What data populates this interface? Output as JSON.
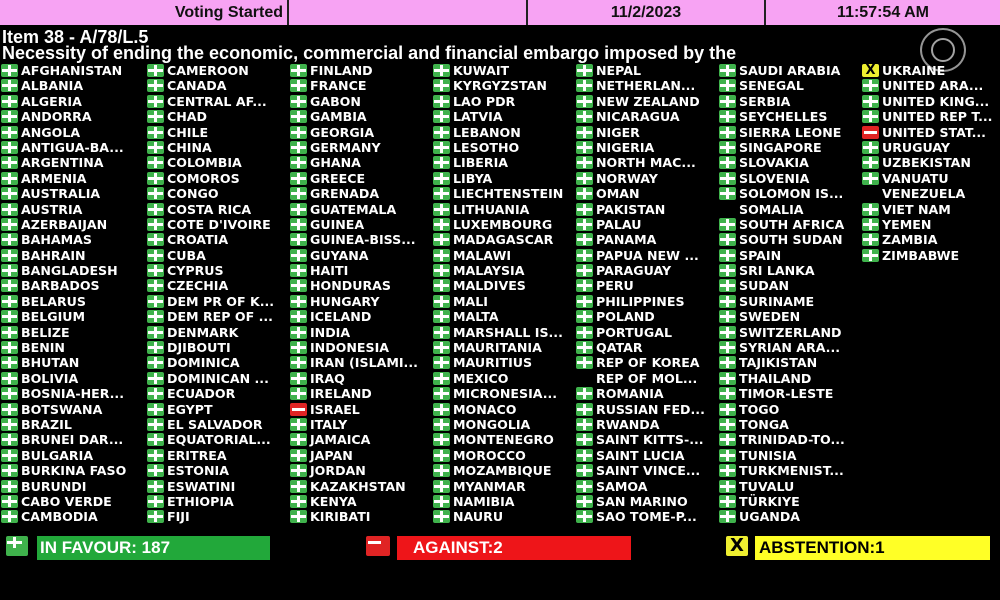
{
  "header": {
    "status": "Voting Started",
    "blank": "",
    "date": "11/2/2023",
    "time": "11:57:54 AM"
  },
  "item": "Item 38 - A/78/L.5",
  "description": "Necessity of ending the economic, commercial and financial embargo imposed by the",
  "vote_colors": {
    "yes": "#3fb24c",
    "no": "#e02424",
    "abstain": "#eeee30"
  },
  "columns": [
    [
      {
        "name": "AFGHANISTAN",
        "vote": "yes"
      },
      {
        "name": "ALBANIA",
        "vote": "yes"
      },
      {
        "name": "ALGERIA",
        "vote": "yes"
      },
      {
        "name": "ANDORRA",
        "vote": "yes"
      },
      {
        "name": "ANGOLA",
        "vote": "yes"
      },
      {
        "name": "ANTIGUA-BA...",
        "vote": "yes"
      },
      {
        "name": "ARGENTINA",
        "vote": "yes"
      },
      {
        "name": "ARMENIA",
        "vote": "yes"
      },
      {
        "name": "AUSTRALIA",
        "vote": "yes"
      },
      {
        "name": "AUSTRIA",
        "vote": "yes"
      },
      {
        "name": "AZERBAIJAN",
        "vote": "yes"
      },
      {
        "name": "BAHAMAS",
        "vote": "yes"
      },
      {
        "name": "BAHRAIN",
        "vote": "yes"
      },
      {
        "name": "BANGLADESH",
        "vote": "yes"
      },
      {
        "name": "BARBADOS",
        "vote": "yes"
      },
      {
        "name": "BELARUS",
        "vote": "yes"
      },
      {
        "name": "BELGIUM",
        "vote": "yes"
      },
      {
        "name": "BELIZE",
        "vote": "yes"
      },
      {
        "name": "BENIN",
        "vote": "yes"
      },
      {
        "name": "BHUTAN",
        "vote": "yes"
      },
      {
        "name": "BOLIVIA",
        "vote": "yes"
      },
      {
        "name": "BOSNIA-HER...",
        "vote": "yes"
      },
      {
        "name": "BOTSWANA",
        "vote": "yes"
      },
      {
        "name": "BRAZIL",
        "vote": "yes"
      },
      {
        "name": "BRUNEI DAR...",
        "vote": "yes"
      },
      {
        "name": "BULGARIA",
        "vote": "yes"
      },
      {
        "name": "BURKINA FASO",
        "vote": "yes"
      },
      {
        "name": "BURUNDI",
        "vote": "yes"
      },
      {
        "name": "CABO VERDE",
        "vote": "yes"
      },
      {
        "name": "CAMBODIA",
        "vote": "yes"
      }
    ],
    [
      {
        "name": "CAMEROON",
        "vote": "yes"
      },
      {
        "name": "CANADA",
        "vote": "yes"
      },
      {
        "name": "CENTRAL AF...",
        "vote": "yes"
      },
      {
        "name": "CHAD",
        "vote": "yes"
      },
      {
        "name": "CHILE",
        "vote": "yes"
      },
      {
        "name": "CHINA",
        "vote": "yes"
      },
      {
        "name": "COLOMBIA",
        "vote": "yes"
      },
      {
        "name": "COMOROS",
        "vote": "yes"
      },
      {
        "name": "CONGO",
        "vote": "yes"
      },
      {
        "name": "COSTA RICA",
        "vote": "yes"
      },
      {
        "name": "COTE D'IVOIRE",
        "vote": "yes"
      },
      {
        "name": "CROATIA",
        "vote": "yes"
      },
      {
        "name": "CUBA",
        "vote": "yes"
      },
      {
        "name": "CYPRUS",
        "vote": "yes"
      },
      {
        "name": "CZECHIA",
        "vote": "yes"
      },
      {
        "name": "DEM PR OF K...",
        "vote": "yes"
      },
      {
        "name": "DEM REP OF ...",
        "vote": "yes"
      },
      {
        "name": "DENMARK",
        "vote": "yes"
      },
      {
        "name": "DJIBOUTI",
        "vote": "yes"
      },
      {
        "name": "DOMINICA",
        "vote": "yes"
      },
      {
        "name": "DOMINICAN ...",
        "vote": "yes"
      },
      {
        "name": "ECUADOR",
        "vote": "yes"
      },
      {
        "name": "EGYPT",
        "vote": "yes"
      },
      {
        "name": "EL SALVADOR",
        "vote": "yes"
      },
      {
        "name": "EQUATORIAL...",
        "vote": "yes"
      },
      {
        "name": "ERITREA",
        "vote": "yes"
      },
      {
        "name": "ESTONIA",
        "vote": "yes"
      },
      {
        "name": "ESWATINI",
        "vote": "yes"
      },
      {
        "name": "ETHIOPIA",
        "vote": "yes"
      },
      {
        "name": "FIJI",
        "vote": "yes"
      }
    ],
    [
      {
        "name": "FINLAND",
        "vote": "yes"
      },
      {
        "name": "FRANCE",
        "vote": "yes"
      },
      {
        "name": "GABON",
        "vote": "yes"
      },
      {
        "name": "GAMBIA",
        "vote": "yes"
      },
      {
        "name": "GEORGIA",
        "vote": "yes"
      },
      {
        "name": "GERMANY",
        "vote": "yes"
      },
      {
        "name": "GHANA",
        "vote": "yes"
      },
      {
        "name": "GREECE",
        "vote": "yes"
      },
      {
        "name": "GRENADA",
        "vote": "yes"
      },
      {
        "name": "GUATEMALA",
        "vote": "yes"
      },
      {
        "name": "GUINEA",
        "vote": "yes"
      },
      {
        "name": "GUINEA-BISS...",
        "vote": "yes"
      },
      {
        "name": "GUYANA",
        "vote": "yes"
      },
      {
        "name": "HAITI",
        "vote": "yes"
      },
      {
        "name": "HONDURAS",
        "vote": "yes"
      },
      {
        "name": "HUNGARY",
        "vote": "yes"
      },
      {
        "name": "ICELAND",
        "vote": "yes"
      },
      {
        "name": "INDIA",
        "vote": "yes"
      },
      {
        "name": "INDONESIA",
        "vote": "yes"
      },
      {
        "name": "IRAN (ISLAMI...",
        "vote": "yes"
      },
      {
        "name": "IRAQ",
        "vote": "yes"
      },
      {
        "name": "IRELAND",
        "vote": "yes"
      },
      {
        "name": "ISRAEL",
        "vote": "no"
      },
      {
        "name": "ITALY",
        "vote": "yes"
      },
      {
        "name": "JAMAICA",
        "vote": "yes"
      },
      {
        "name": "JAPAN",
        "vote": "yes"
      },
      {
        "name": "JORDAN",
        "vote": "yes"
      },
      {
        "name": "KAZAKHSTAN",
        "vote": "yes"
      },
      {
        "name": "KENYA",
        "vote": "yes"
      },
      {
        "name": "KIRIBATI",
        "vote": "yes"
      }
    ],
    [
      {
        "name": "KUWAIT",
        "vote": "yes"
      },
      {
        "name": "KYRGYZSTAN",
        "vote": "yes"
      },
      {
        "name": "LAO PDR",
        "vote": "yes"
      },
      {
        "name": "LATVIA",
        "vote": "yes"
      },
      {
        "name": "LEBANON",
        "vote": "yes"
      },
      {
        "name": "LESOTHO",
        "vote": "yes"
      },
      {
        "name": "LIBERIA",
        "vote": "yes"
      },
      {
        "name": "LIBYA",
        "vote": "yes"
      },
      {
        "name": "LIECHTENSTEIN",
        "vote": "yes"
      },
      {
        "name": "LITHUANIA",
        "vote": "yes"
      },
      {
        "name": "LUXEMBOURG",
        "vote": "yes"
      },
      {
        "name": "MADAGASCAR",
        "vote": "yes"
      },
      {
        "name": "MALAWI",
        "vote": "yes"
      },
      {
        "name": "MALAYSIA",
        "vote": "yes"
      },
      {
        "name": "MALDIVES",
        "vote": "yes"
      },
      {
        "name": "MALI",
        "vote": "yes"
      },
      {
        "name": "MALTA",
        "vote": "yes"
      },
      {
        "name": "MARSHALL IS...",
        "vote": "yes"
      },
      {
        "name": "MAURITANIA",
        "vote": "yes"
      },
      {
        "name": "MAURITIUS",
        "vote": "yes"
      },
      {
        "name": "MEXICO",
        "vote": "yes"
      },
      {
        "name": "MICRONESIA...",
        "vote": "yes"
      },
      {
        "name": "MONACO",
        "vote": "yes"
      },
      {
        "name": "MONGOLIA",
        "vote": "yes"
      },
      {
        "name": "MONTENEGRO",
        "vote": "yes"
      },
      {
        "name": "MOROCCO",
        "vote": "yes"
      },
      {
        "name": "MOZAMBIQUE",
        "vote": "yes"
      },
      {
        "name": "MYANMAR",
        "vote": "yes"
      },
      {
        "name": "NAMIBIA",
        "vote": "yes"
      },
      {
        "name": "NAURU",
        "vote": "yes"
      }
    ],
    [
      {
        "name": "NEPAL",
        "vote": "yes"
      },
      {
        "name": "NETHERLAN...",
        "vote": "yes"
      },
      {
        "name": "NEW ZEALAND",
        "vote": "yes"
      },
      {
        "name": "NICARAGUA",
        "vote": "yes"
      },
      {
        "name": "NIGER",
        "vote": "yes"
      },
      {
        "name": "NIGERIA",
        "vote": "yes"
      },
      {
        "name": "NORTH MAC...",
        "vote": "yes"
      },
      {
        "name": "NORWAY",
        "vote": "yes"
      },
      {
        "name": "OMAN",
        "vote": "yes"
      },
      {
        "name": "PAKISTAN",
        "vote": "yes"
      },
      {
        "name": "PALAU",
        "vote": "yes"
      },
      {
        "name": "PANAMA",
        "vote": "yes"
      },
      {
        "name": "PAPUA NEW ...",
        "vote": "yes"
      },
      {
        "name": "PARAGUAY",
        "vote": "yes"
      },
      {
        "name": "PERU",
        "vote": "yes"
      },
      {
        "name": "PHILIPPINES",
        "vote": "yes"
      },
      {
        "name": "POLAND",
        "vote": "yes"
      },
      {
        "name": "PORTUGAL",
        "vote": "yes"
      },
      {
        "name": "QATAR",
        "vote": "yes"
      },
      {
        "name": "REP OF KOREA",
        "vote": "yes"
      },
      {
        "name": "REP OF MOL...",
        "vote": ""
      },
      {
        "name": "ROMANIA",
        "vote": "yes"
      },
      {
        "name": "RUSSIAN FED...",
        "vote": "yes"
      },
      {
        "name": "RWANDA",
        "vote": "yes"
      },
      {
        "name": "SAINT KITTS-...",
        "vote": "yes"
      },
      {
        "name": "SAINT LUCIA",
        "vote": "yes"
      },
      {
        "name": "SAINT VINCE...",
        "vote": "yes"
      },
      {
        "name": "SAMOA",
        "vote": "yes"
      },
      {
        "name": "SAN MARINO",
        "vote": "yes"
      },
      {
        "name": "SAO TOME-P...",
        "vote": "yes"
      }
    ],
    [
      {
        "name": "SAUDI ARABIA",
        "vote": "yes"
      },
      {
        "name": "SENEGAL",
        "vote": "yes"
      },
      {
        "name": "SERBIA",
        "vote": "yes"
      },
      {
        "name": "SEYCHELLES",
        "vote": "yes"
      },
      {
        "name": "SIERRA LEONE",
        "vote": "yes"
      },
      {
        "name": "SINGAPORE",
        "vote": "yes"
      },
      {
        "name": "SLOVAKIA",
        "vote": "yes"
      },
      {
        "name": "SLOVENIA",
        "vote": "yes"
      },
      {
        "name": "SOLOMON IS...",
        "vote": "yes"
      },
      {
        "name": "SOMALIA",
        "vote": ""
      },
      {
        "name": "SOUTH AFRICA",
        "vote": "yes"
      },
      {
        "name": "SOUTH SUDAN",
        "vote": "yes"
      },
      {
        "name": "SPAIN",
        "vote": "yes"
      },
      {
        "name": "SRI LANKA",
        "vote": "yes"
      },
      {
        "name": "SUDAN",
        "vote": "yes"
      },
      {
        "name": "SURINAME",
        "vote": "yes"
      },
      {
        "name": "SWEDEN",
        "vote": "yes"
      },
      {
        "name": "SWITZERLAND",
        "vote": "yes"
      },
      {
        "name": "SYRIAN ARA...",
        "vote": "yes"
      },
      {
        "name": "TAJIKISTAN",
        "vote": "yes"
      },
      {
        "name": "THAILAND",
        "vote": "yes"
      },
      {
        "name": "TIMOR-LESTE",
        "vote": "yes"
      },
      {
        "name": "TOGO",
        "vote": "yes"
      },
      {
        "name": "TONGA",
        "vote": "yes"
      },
      {
        "name": "TRINIDAD-TO...",
        "vote": "yes"
      },
      {
        "name": "TUNISIA",
        "vote": "yes"
      },
      {
        "name": "TURKMENIST...",
        "vote": "yes"
      },
      {
        "name": "TUVALU",
        "vote": "yes"
      },
      {
        "name": "TÜRKIYE",
        "vote": "yes"
      },
      {
        "name": "UGANDA",
        "vote": "yes"
      }
    ],
    [
      {
        "name": "UKRAINE",
        "vote": "abstain"
      },
      {
        "name": "UNITED ARA...",
        "vote": "yes"
      },
      {
        "name": "UNITED KING...",
        "vote": "yes"
      },
      {
        "name": "UNITED REP T...",
        "vote": "yes"
      },
      {
        "name": "UNITED STAT...",
        "vote": "no"
      },
      {
        "name": "URUGUAY",
        "vote": "yes"
      },
      {
        "name": "UZBEKISTAN",
        "vote": "yes"
      },
      {
        "name": "VANUATU",
        "vote": "yes"
      },
      {
        "name": "VENEZUELA",
        "vote": ""
      },
      {
        "name": "VIET NAM",
        "vote": "yes"
      },
      {
        "name": "YEMEN",
        "vote": "yes"
      },
      {
        "name": "ZAMBIA",
        "vote": "yes"
      },
      {
        "name": "ZIMBABWE",
        "vote": "yes"
      }
    ]
  ],
  "summary": {
    "in_favour": "IN FAVOUR: 187",
    "against": "AGAINST:2",
    "abstention": "ABSTENTION:1",
    "abstain_icon": "X"
  }
}
